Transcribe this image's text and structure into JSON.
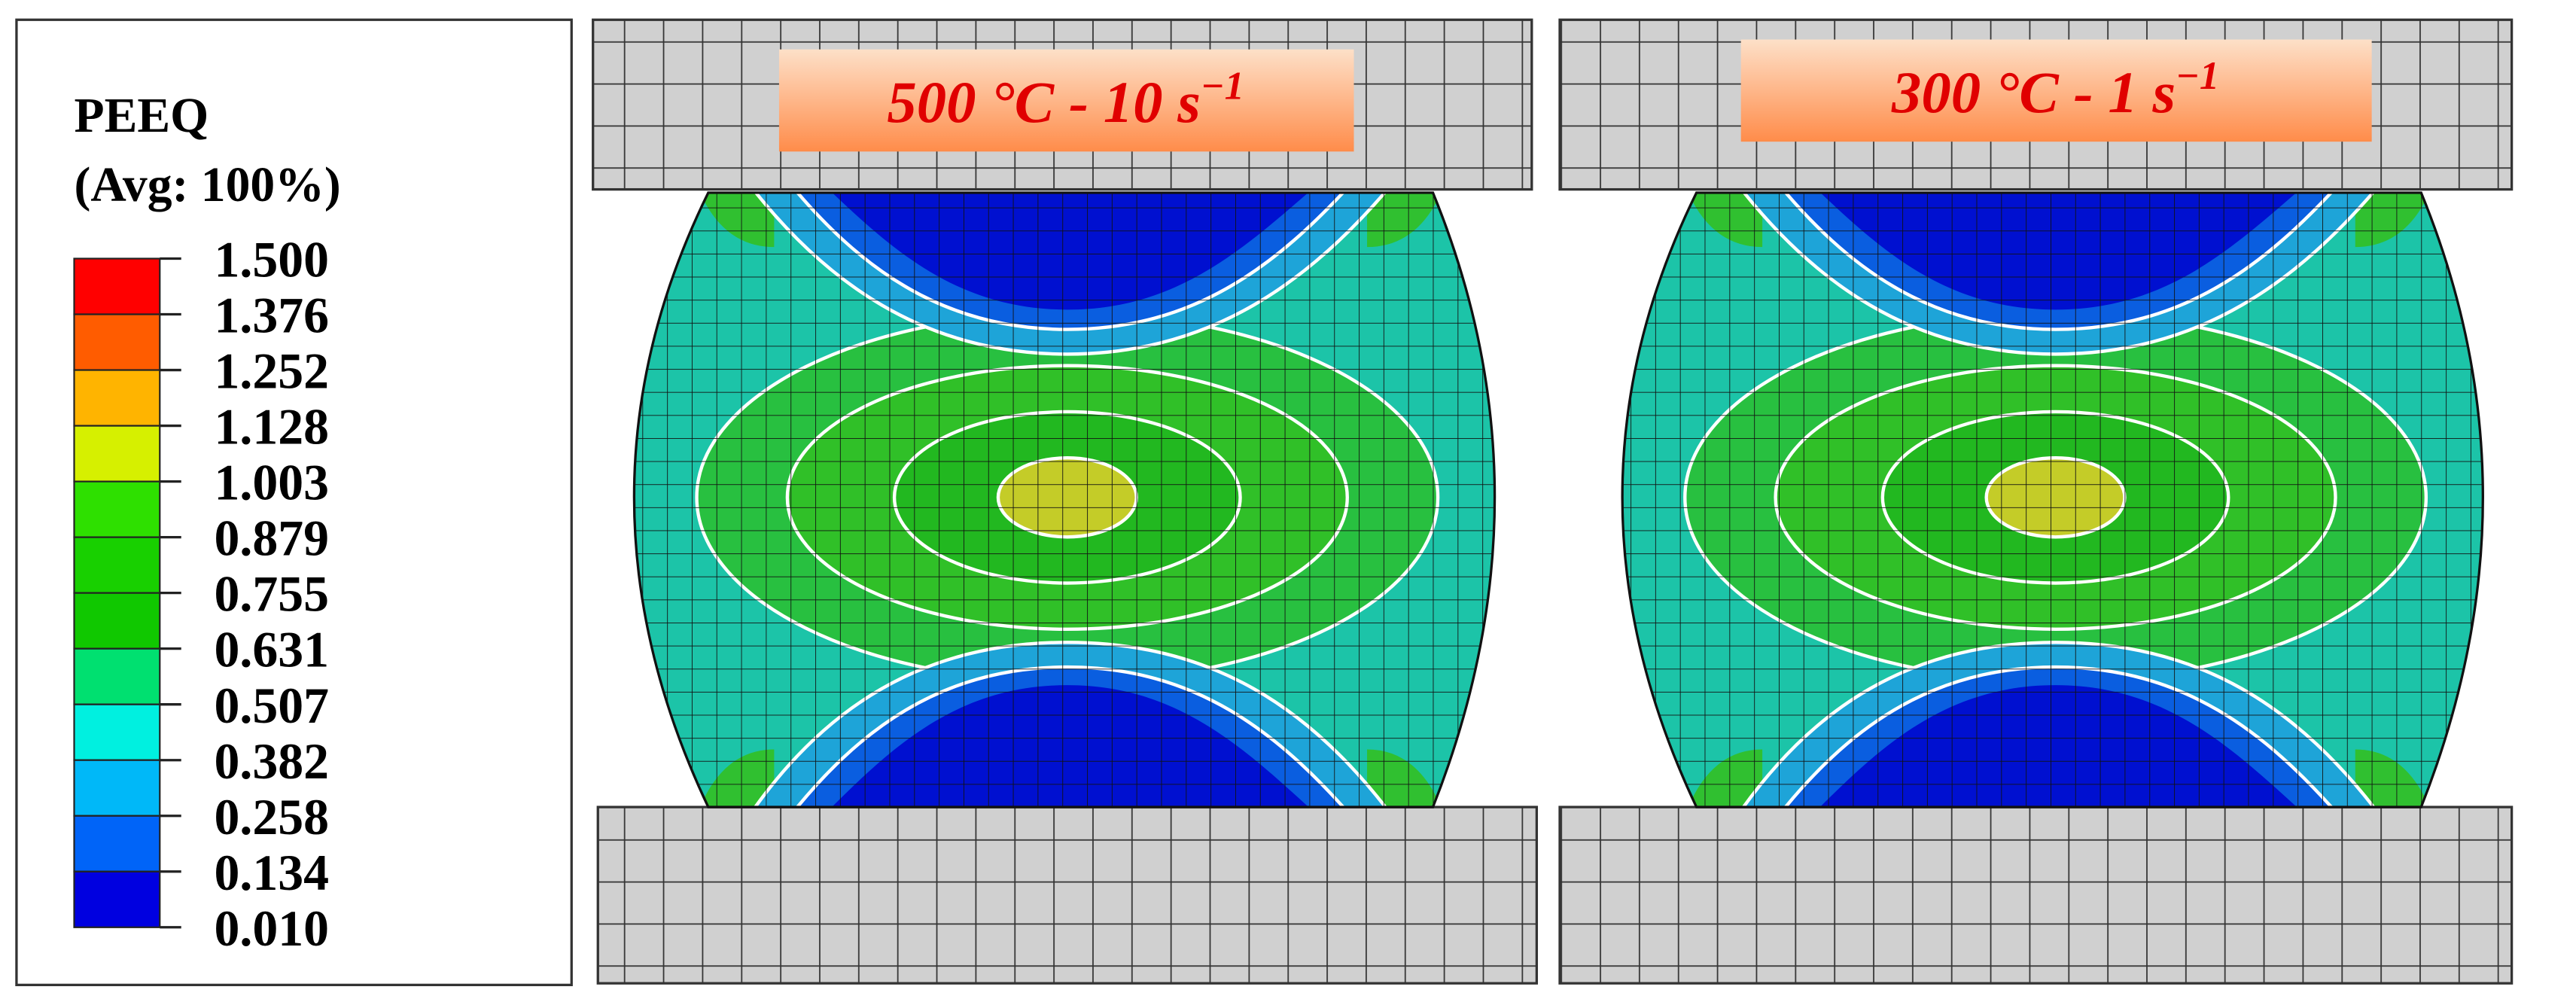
{
  "legend": {
    "title": "PEEQ",
    "subtitle": "(Avg: 100%)",
    "levels": [
      "1.500",
      "1.376",
      "1.252",
      "1.128",
      "1.003",
      "0.879",
      "0.755",
      "0.631",
      "0.507",
      "0.382",
      "0.258",
      "0.134",
      "0.010"
    ],
    "colors": [
      "#ff0000",
      "#ff5c00",
      "#ffb400",
      "#d6f000",
      "#2ee000",
      "#18d000",
      "#10c800",
      "#00e070",
      "#00f0e0",
      "#00b8f8",
      "#0064f8",
      "#0000e0"
    ]
  },
  "panels": [
    {
      "label": {
        "text": "500 °C - 10 s",
        "superscript": "−1"
      }
    },
    {
      "label": {
        "text": "300 °C - 1 s",
        "superscript": "−1"
      }
    }
  ]
}
